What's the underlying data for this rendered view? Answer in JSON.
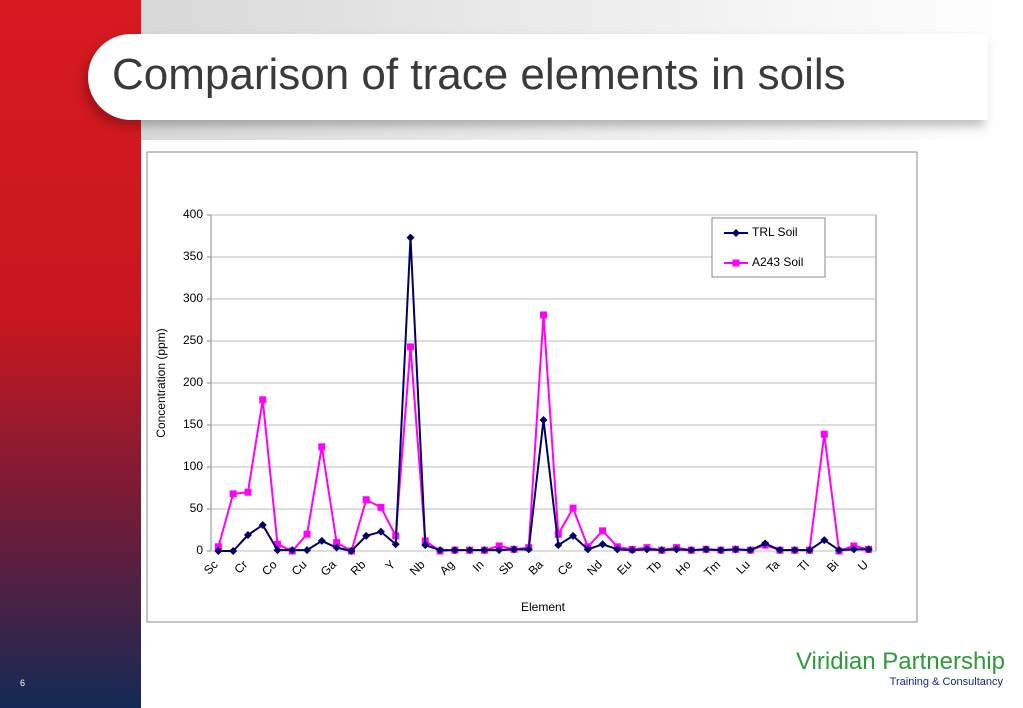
{
  "slide": {
    "title": "Comparison of trace elements in soils",
    "page_number": "6",
    "logo": {
      "name": "Viridian Partnership",
      "tagline": "Training & Consultancy"
    }
  },
  "chart_data": {
    "type": "line",
    "x_label": "Element",
    "y_label": "Concentration (ppm)",
    "categories": [
      "Sc",
      null,
      "Cr",
      null,
      "Co",
      null,
      "Cu",
      null,
      "Ga",
      null,
      "Rb",
      null,
      "Y",
      null,
      "Nb",
      null,
      "Ag",
      null,
      "In",
      null,
      "Sb",
      null,
      "Ba",
      null,
      "Ce",
      null,
      "Nd",
      null,
      "Eu",
      null,
      "Tb",
      null,
      "Ho",
      null,
      "Tm",
      null,
      "Lu",
      null,
      "Ta",
      null,
      "Tl",
      null,
      "Bi",
      null,
      "U"
    ],
    "series": [
      {
        "name": "TRL Soil",
        "color": "#000066",
        "marker": "diamond",
        "values": [
          0,
          0,
          19,
          31,
          1,
          1,
          1,
          12,
          4,
          0,
          18,
          23,
          8,
          373,
          7,
          1,
          1,
          1,
          1,
          1,
          2,
          2,
          156,
          7,
          18,
          2,
          8,
          2,
          1,
          2,
          1,
          2,
          1,
          2,
          1,
          2,
          1,
          9,
          1,
          1,
          1,
          13,
          1,
          2,
          2
        ]
      },
      {
        "name": "A243 Soil",
        "color": "#ff00ff",
        "marker": "square",
        "values": [
          5,
          68,
          70,
          180,
          8,
          0,
          20,
          124,
          10,
          0,
          61,
          52,
          18,
          243,
          12,
          0,
          1,
          1,
          1,
          6,
          2,
          4,
          281,
          20,
          51,
          5,
          24,
          5,
          2,
          4,
          1,
          4,
          1,
          2,
          1,
          2,
          1,
          7,
          1,
          1,
          1,
          139,
          0,
          6,
          2
        ]
      }
    ],
    "ylim": [
      0,
      400
    ],
    "yticks": [
      0,
      50,
      100,
      150,
      200,
      250,
      300,
      350,
      400
    ],
    "grid": true,
    "legend": "upper right"
  }
}
